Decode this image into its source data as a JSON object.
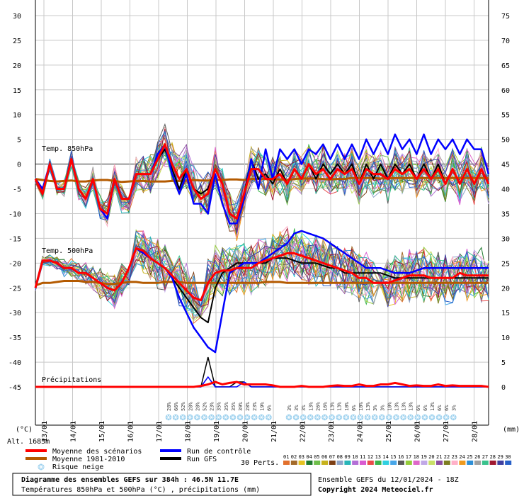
{
  "chart_data": {
    "type": "line",
    "left_axis_label": "(°C)",
    "right_axis_label": "(mm)",
    "left_axis": {
      "min": -45,
      "max": 30,
      "ticks": [
        30,
        25,
        20,
        15,
        10,
        5,
        0,
        -5,
        -10,
        -15,
        -20,
        -25,
        -30,
        -35,
        -40,
        -45
      ]
    },
    "right_axis": {
      "min": 0,
      "max": 75,
      "ticks": [
        75,
        70,
        65,
        60,
        55,
        50,
        45,
        40,
        35,
        30,
        25,
        20,
        15,
        10,
        5,
        0
      ]
    },
    "x_date_labels": [
      "13/01",
      "14/01",
      "15/01",
      "16/01",
      "17/01",
      "18/01",
      "19/01",
      "20/01",
      "21/01",
      "22/01",
      "23/01",
      "24/01",
      "25/01",
      "26/01",
      "27/01",
      "28/01"
    ],
    "grid": true,
    "section_labels": {
      "t850": "Temp. 850hPa",
      "t500": "Temp. 500hPa",
      "precip": "Précipitations"
    },
    "altitude": "Alt. 1683m",
    "snow_risk_percent": [
      "28%",
      "66%",
      "52%",
      "28%",
      "28%",
      "52%",
      "23%",
      "35%",
      "35%",
      "35%",
      "39%",
      "28%",
      "23%",
      "19%",
      "6%",
      "3%",
      "3%",
      "3%",
      "13%",
      "26%",
      "16%",
      "13%",
      "13%",
      "10%",
      "6%",
      "10%",
      "13%",
      "3%",
      "3%",
      "10%",
      "13%",
      "13%",
      "13%",
      "6%",
      "6%",
      "13%",
      "6%",
      "6%",
      "3%"
    ],
    "series": [
      {
        "name": "Moyenne des scénarios",
        "color": "#ff0000",
        "t850": [
          -3,
          -6,
          0,
          -5,
          -5,
          1,
          -5,
          -7,
          -3,
          -9,
          -10,
          -3,
          -7,
          -7,
          -2,
          -2,
          -2,
          1,
          4,
          0,
          -3,
          -1,
          -5,
          -7,
          -6,
          -1,
          -4,
          -10,
          -11,
          -6,
          -1,
          -1,
          -3,
          -3,
          -2,
          -4,
          -1,
          -3,
          0,
          -2,
          -1,
          -3,
          -1,
          -2,
          -1,
          -4,
          -1,
          -2,
          -2,
          -3,
          -1,
          -2,
          -1,
          -3,
          -1,
          -3,
          -1,
          -4,
          -1,
          -4,
          -1,
          -4,
          -1,
          -4
        ],
        "t500": [
          -25,
          -19.5,
          -19.5,
          -20,
          -21,
          -21,
          -22,
          -22,
          -23,
          -24,
          -25,
          -25.5,
          -24,
          -21,
          -17,
          -17.5,
          -19,
          -20,
          -21,
          -22.5,
          -24,
          -25.5,
          -27,
          -27.5,
          -24,
          -22,
          -21.5,
          -21.5,
          -21,
          -21,
          -21,
          -20,
          -19.5,
          -19,
          -18.5,
          -18,
          -18,
          -18.5,
          -19,
          -19.5,
          -20,
          -20.5,
          -21,
          -21.5,
          -22,
          -23,
          -23,
          -24,
          -24,
          -24,
          -23.5,
          -23,
          -22.5,
          -22.5,
          -22.5,
          -23,
          -23,
          -23,
          -23,
          -22,
          -22.5,
          -22.5,
          -22.5,
          -22.5
        ],
        "precip": [
          0,
          0,
          0,
          0,
          0,
          0,
          0,
          0,
          0,
          0,
          0,
          0,
          0,
          0,
          0,
          0,
          0,
          0,
          0,
          0,
          0,
          0,
          0,
          0.2,
          0.5,
          1,
          0.5,
          0.8,
          1,
          0.5,
          0.5,
          0.5,
          0.5,
          0.3,
          0,
          0,
          0,
          0.2,
          0,
          0,
          0,
          0.2,
          0.3,
          0.2,
          0.2,
          0.5,
          0.2,
          0.2,
          0.5,
          0.5,
          0.8,
          0.5,
          0.2,
          0.3,
          0.2,
          0.2,
          0.5,
          0.2,
          0.3,
          0.2,
          0.2,
          0.2,
          0.2,
          0
        ]
      },
      {
        "name": "Moyenne 1981-2010",
        "color": "#b45a00",
        "t850": [
          -3,
          -3.2,
          -3.4,
          -3.5,
          -3.4,
          -3.3,
          -3.5,
          -3.5,
          -3.3,
          -3.2,
          -3.2,
          -3.4,
          -3.6,
          -3.5,
          -3.4,
          -3.4,
          -3.5,
          -3.5,
          -3.5,
          -3.4,
          -3.4,
          -3.3,
          -3.2,
          -3.3,
          -3.3,
          -3.2,
          -3.2,
          -3.1,
          -3.1,
          -3.2,
          -3,
          -3,
          -3,
          -3.1,
          -3.1,
          -3.2,
          -3,
          -2.9,
          -2.9,
          -2.9,
          -3,
          -3.1,
          -3,
          -3,
          -2.8,
          -2.8,
          -2.8,
          -2.8,
          -2.9,
          -2.9,
          -2.8,
          -2.8,
          -2.8,
          -2.8,
          -2.8,
          -2.8,
          -2.8,
          -2.8,
          -2.8,
          -2.8,
          -2.8,
          -2.8,
          -2.8,
          -2.8
        ],
        "t500": [
          -24.5,
          -24,
          -24,
          -23.8,
          -23.6,
          -23.6,
          -23.6,
          -23.8,
          -23.8,
          -24,
          -24.2,
          -24.2,
          -24,
          -23.8,
          -23.8,
          -24,
          -24,
          -24,
          -23.8,
          -23.8,
          -23.8,
          -24,
          -24,
          -24,
          -24,
          -24,
          -24,
          -24,
          -24,
          -24,
          -24,
          -24,
          -23.8,
          -23.8,
          -23.8,
          -24,
          -24,
          -24,
          -24,
          -24,
          -24,
          -24,
          -24,
          -24,
          -24,
          -24,
          -24,
          -24,
          -24,
          -24,
          -24,
          -24,
          -24,
          -24,
          -24,
          -24,
          -24,
          -24,
          -24,
          -24,
          -24,
          -24,
          -24,
          -24
        ]
      },
      {
        "name": "Run de contrôle",
        "color": "#0000ff",
        "t850": [
          -3,
          -5,
          0,
          -5,
          -5,
          1,
          -5,
          -7,
          -3,
          -9,
          -11,
          -3,
          -7,
          -7,
          -2,
          -2,
          -2,
          2,
          4,
          -2,
          -6,
          -2,
          -8,
          -8,
          -10,
          -2,
          -8,
          -12,
          -12,
          -7,
          1,
          -5,
          3,
          -3,
          3,
          1,
          3,
          0,
          3,
          2,
          4,
          1,
          4,
          1,
          4,
          1,
          5,
          2,
          5,
          2,
          6,
          3,
          5,
          2,
          6,
          2,
          5,
          3,
          5,
          2,
          5,
          3,
          3,
          -2
        ],
        "t500": [
          -25,
          -19.5,
          -19.5,
          -20,
          -21,
          -21,
          -22,
          -22,
          -23,
          -24,
          -25,
          -25.5,
          -24,
          -21,
          -17,
          -18,
          -19,
          -20,
          -21,
          -23,
          -27,
          -30,
          -33,
          -35,
          -37,
          -38,
          -30,
          -22,
          -21,
          -20,
          -20,
          -20,
          -19,
          -18,
          -17,
          -16,
          -14,
          -13.5,
          -14,
          -14.5,
          -15,
          -16,
          -17,
          -18,
          -19,
          -20,
          -21,
          -21,
          -21,
          -21.5,
          -22,
          -22,
          -22,
          -21.5,
          -21,
          -21,
          -21,
          -21,
          -21,
          -21,
          -21,
          -21,
          -21,
          -21
        ],
        "precip": [
          0,
          0,
          0,
          0,
          0,
          0,
          0,
          0,
          0,
          0,
          0,
          0,
          0,
          0,
          0,
          0,
          0,
          0,
          0,
          0,
          0,
          0,
          0,
          0,
          2,
          0,
          0,
          0,
          0,
          1,
          0,
          0,
          0,
          0,
          0,
          0,
          0,
          0,
          0,
          0,
          0,
          0,
          0,
          0,
          0,
          0,
          0,
          0,
          0,
          0,
          0,
          0,
          0,
          0,
          0,
          0,
          0,
          0,
          0,
          0,
          0,
          0,
          0,
          0
        ]
      },
      {
        "name": "Run GFS",
        "color": "#000000",
        "t850": [
          -3,
          -5,
          0,
          -5,
          -5,
          1,
          -5,
          -7,
          -3,
          -9,
          -11,
          -3,
          -7,
          -7,
          -2,
          -2,
          -2,
          1,
          3,
          -1,
          -5,
          -1,
          -5,
          -6,
          -5,
          -1,
          -4,
          -10,
          -11,
          -6,
          1,
          -3,
          -2,
          -4,
          -1,
          -4,
          -1,
          -3,
          0,
          -3,
          0,
          -2,
          0,
          -2,
          0,
          -4,
          0,
          -3,
          0,
          -3,
          0,
          -2,
          0,
          -3,
          0,
          -3,
          0,
          -4,
          -1,
          -4,
          -1,
          -4,
          -1,
          -4
        ],
        "t500": [
          -25,
          -19.5,
          -19.5,
          -20,
          -21,
          -21,
          -22,
          -22,
          -23,
          -24,
          -25,
          -25.5,
          -24,
          -21,
          -17,
          -18,
          -19,
          -20,
          -21,
          -23,
          -25,
          -27,
          -29,
          -31,
          -32,
          -25,
          -22,
          -21,
          -20,
          -20,
          -20,
          -20,
          -20,
          -19,
          -19,
          -19,
          -19.5,
          -20,
          -20,
          -20,
          -20.5,
          -21,
          -21,
          -22,
          -22,
          -22,
          -22,
          -22,
          -22,
          -22.5,
          -23,
          -23,
          -23,
          -23,
          -23,
          -23,
          -23,
          -23,
          -23,
          -23,
          -23,
          -23,
          -23,
          -23
        ],
        "precip": [
          0,
          0,
          0,
          0,
          0,
          0,
          0,
          0,
          0,
          0,
          0,
          0,
          0,
          0,
          0,
          0,
          0,
          0,
          0,
          0,
          0,
          0,
          0,
          0,
          6,
          0,
          0,
          0,
          1,
          1,
          0,
          0,
          0,
          0,
          0,
          0,
          0,
          0,
          0,
          0,
          0,
          0,
          0,
          0,
          0,
          0,
          0,
          0,
          0,
          0,
          0,
          0,
          0,
          0,
          0,
          0,
          0,
          0,
          0,
          0,
          0,
          0,
          0,
          0
        ]
      }
    ]
  },
  "legend": {
    "scenarios": "Moyenne des scénarios",
    "climato": "Moyenne 1981-2010",
    "snow": "Risque neige",
    "control": "Run de contrôle",
    "gfs": "Run GFS",
    "perts": "30 Perts.",
    "members": [
      "01",
      "02",
      "03",
      "04",
      "05",
      "06",
      "07",
      "08",
      "09",
      "10",
      "11",
      "12",
      "13",
      "14",
      "15",
      "16",
      "17",
      "18",
      "19",
      "20",
      "21",
      "22",
      "23",
      "24",
      "25",
      "26",
      "27",
      "28",
      "29",
      "30"
    ],
    "member_colors": [
      "#e2702d",
      "#a36a2a",
      "#e6c322",
      "#1f7a2e",
      "#6fbf4b",
      "#c7b21d",
      "#7d3f15",
      "#8fa4c9",
      "#29b5b8",
      "#b36fd6",
      "#d95bd1",
      "#e94b4b",
      "#3bb34a",
      "#2fd0e0",
      "#47a6e8",
      "#5a5a5a",
      "#94cc3a",
      "#df68c9",
      "#c0a8e6",
      "#c9e067",
      "#8d4fa2",
      "#7e7e22",
      "#ffb0c8",
      "#ef9a1e",
      "#2e8fd6",
      "#a0a0a0",
      "#3ac28d",
      "#a01830",
      "#4040a0",
      "#2860c8"
    ]
  },
  "footer": {
    "title": "Diagramme des ensembles GEFS sur 384h : 46.5N 11.7E",
    "subtitle": "Températures 850hPa et 500hPa (°C) , précipitations (mm)",
    "run": "Ensemble GEFS du 12/01/2024 - 18Z",
    "copyright": "Copyright 2024 Meteociel.fr"
  }
}
